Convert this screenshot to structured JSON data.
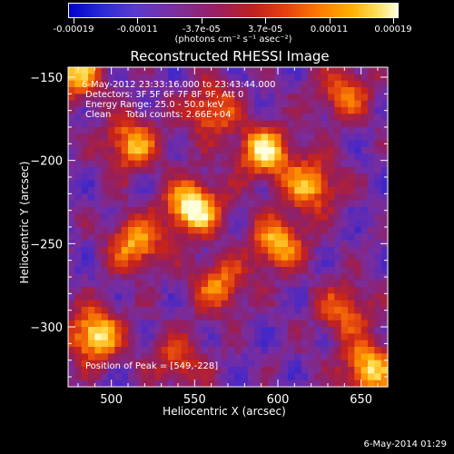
{
  "colorbar": {
    "tick_labels": [
      "-0.00019",
      "-0.00011",
      "-3.7e-05",
      "3.7e-05",
      "0.00011",
      "0.00019"
    ],
    "units": "(photons cm⁻² s⁻¹ asec⁻²)"
  },
  "info_lines": [
    "6-May-2012 23:33:16.000 to 23:43:44.000",
    "Detectors: 3F 5F 6F 7F 8F 9F, Att 0",
    "Energy Range: 25.0 - 50.0 keV",
    "Clean     Total counts: 2.66E+04"
  ],
  "peak_text": "Position of Peak = [549,-228]",
  "footer_date": "6-May-2014 01:29",
  "chart_data": {
    "type": "heatmap",
    "title": "Reconstructed RHESSI Image",
    "xlabel": "Heliocentric X (arcsec)",
    "ylabel": "Heliocentric Y (arcsec)",
    "xlim": [
      474,
      666
    ],
    "ylim": [
      -336,
      -144
    ],
    "x_ticks": [
      500,
      550,
      600,
      650
    ],
    "y_ticks": [
      -150,
      -200,
      -250,
      -300
    ],
    "colorscale_range": [
      -0.00019,
      0.00019
    ],
    "peak": [
      549,
      -228
    ],
    "colors": {
      "low": "#1a1ad0",
      "mid": "#8a2fa0",
      "high": "#e84010",
      "max": "#ffffd8"
    },
    "bright_sources": [
      {
        "x": 549,
        "y": -228,
        "intensity": 1.0
      },
      {
        "x": 592,
        "y": -195,
        "intensity": 0.85
      },
      {
        "x": 512,
        "y": -190,
        "intensity": 0.7
      },
      {
        "x": 490,
        "y": -305,
        "intensity": 0.9
      },
      {
        "x": 515,
        "y": -250,
        "intensity": 0.7
      },
      {
        "x": 600,
        "y": -250,
        "intensity": 0.75
      },
      {
        "x": 620,
        "y": -215,
        "intensity": 0.7
      },
      {
        "x": 478,
        "y": -148,
        "intensity": 0.75
      },
      {
        "x": 640,
        "y": -160,
        "intensity": 0.55
      },
      {
        "x": 560,
        "y": -170,
        "intensity": 0.6
      },
      {
        "x": 640,
        "y": -290,
        "intensity": 0.55
      },
      {
        "x": 655,
        "y": -325,
        "intensity": 0.8
      },
      {
        "x": 565,
        "y": -275,
        "intensity": 0.6
      },
      {
        "x": 540,
        "y": -320,
        "intensity": 0.45
      }
    ]
  }
}
